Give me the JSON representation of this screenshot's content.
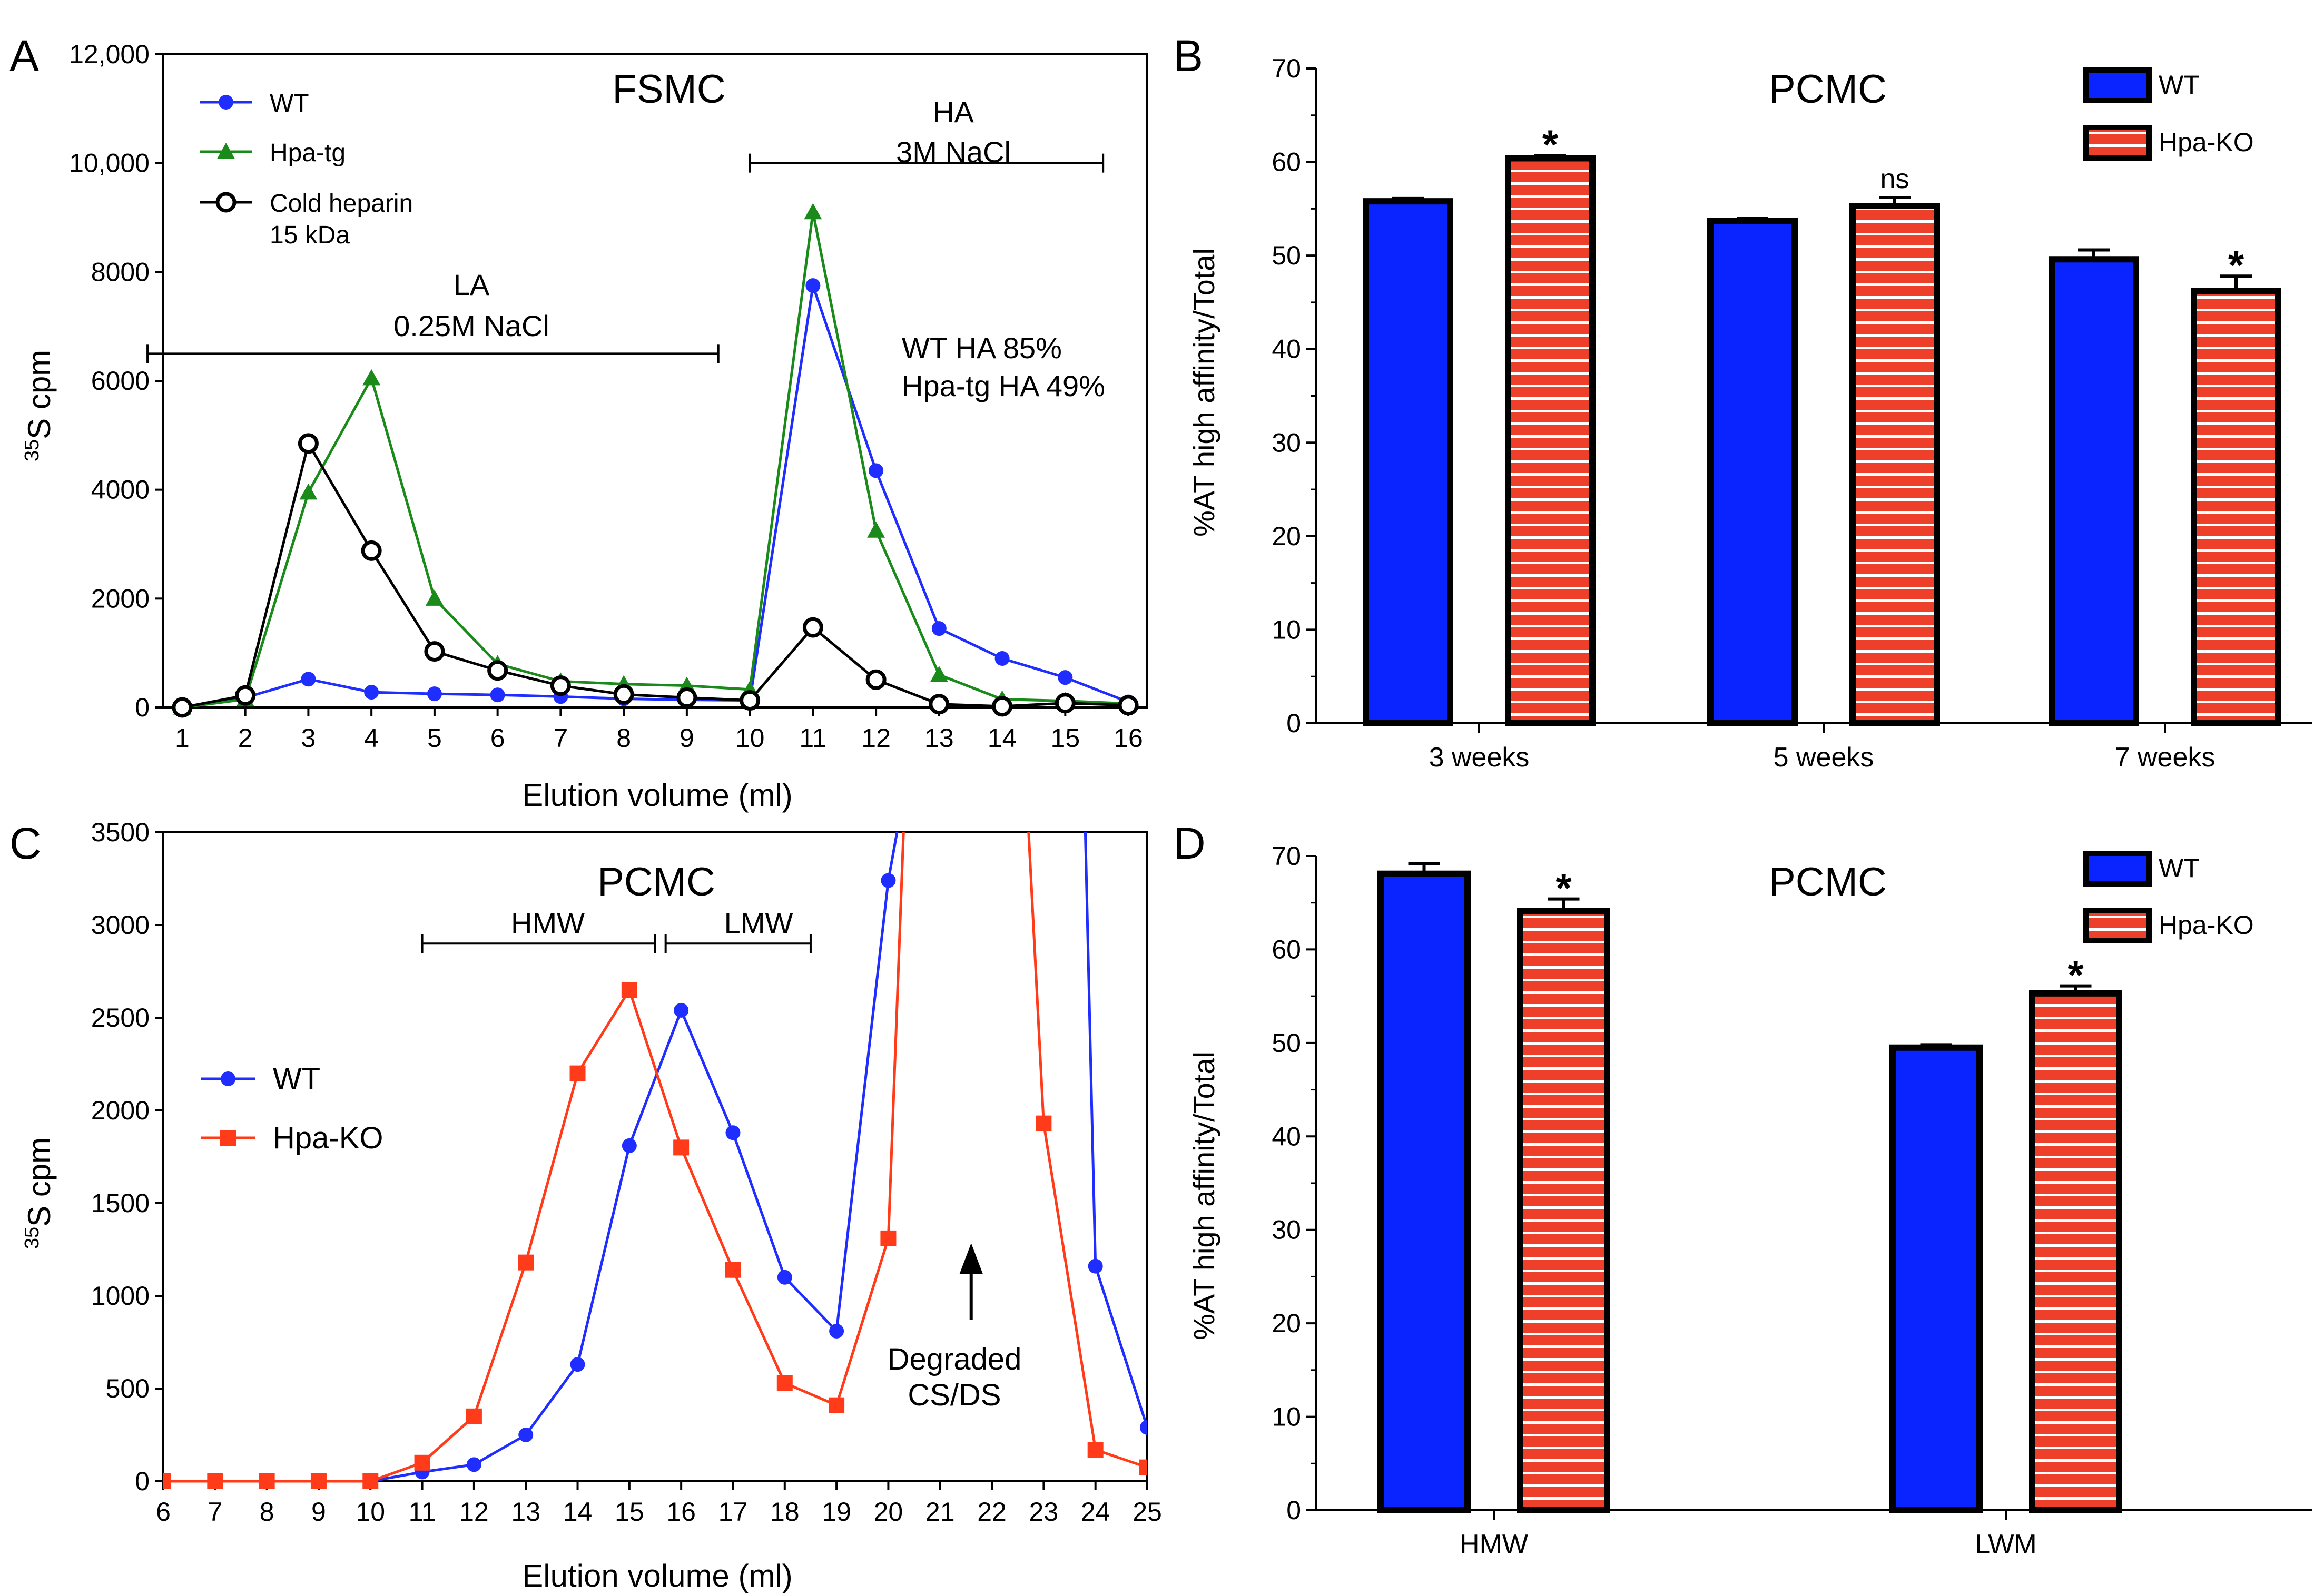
{
  "colors": {
    "wt_line": "#1f2eff",
    "hpa_tg": "#1a8a1a",
    "cold": "#000000",
    "hpa_ko": "#ff3b1a",
    "bar_blue": "#0a24ff",
    "bar_red": "#ee3f2a",
    "stripe": "#ffffff"
  },
  "chart_data": [
    {
      "panel": "A",
      "type": "line",
      "title": "FSMC",
      "xlabel": "Elution volume (ml)",
      "ylabel_sup": "35",
      "ylabel_main": "S cpm",
      "xlim": [
        0.7,
        16.3
      ],
      "ylim": [
        0,
        12000
      ],
      "x_ticks": [
        "1",
        "2",
        "3",
        "4",
        "5",
        "6",
        "7",
        "8",
        "9",
        "10",
        "11",
        "12",
        "13",
        "14",
        "15",
        "16"
      ],
      "y_ticks": [
        {
          "value": 0,
          "label": "0"
        },
        {
          "value": 2000,
          "label": "2000"
        },
        {
          "value": 4000,
          "label": "4000"
        },
        {
          "value": 6000,
          "label": "6000"
        },
        {
          "value": 8000,
          "label": "8000"
        },
        {
          "value": 10000,
          "label": "10,000"
        },
        {
          "value": 12000,
          "label": "12,000"
        }
      ],
      "series": [
        {
          "name": "WT",
          "marker": "circle-filled",
          "color_key": "wt_line",
          "x": [
            1,
            2,
            3,
            4,
            5,
            6,
            7,
            8,
            9,
            10,
            11,
            12,
            13,
            14,
            15,
            16
          ],
          "values": [
            0,
            180,
            520,
            280,
            250,
            230,
            200,
            160,
            140,
            130,
            7750,
            4350,
            1450,
            900,
            550,
            100
          ]
        },
        {
          "name": "Hpa-tg",
          "marker": "triangle",
          "color_key": "hpa_tg",
          "x": [
            1,
            2,
            3,
            4,
            5,
            6,
            7,
            8,
            9,
            10,
            11,
            12,
            13,
            14,
            15,
            16
          ],
          "values": [
            0,
            150,
            3950,
            6050,
            2000,
            800,
            480,
            430,
            400,
            330,
            9100,
            3250,
            600,
            150,
            120,
            70
          ]
        },
        {
          "name": "Cold heparin 15 kDa",
          "legend_lines": [
            "Cold heparin",
            "15 kDa"
          ],
          "marker": "circle-open",
          "color_key": "cold",
          "x": [
            1,
            2,
            3,
            4,
            5,
            6,
            7,
            8,
            9,
            10,
            11,
            12,
            13,
            14,
            15,
            16
          ],
          "values": [
            0,
            220,
            4850,
            2880,
            1030,
            680,
            400,
            240,
            180,
            130,
            1470,
            510,
            60,
            20,
            80,
            40
          ]
        }
      ],
      "brackets": [
        {
          "label_lines": [
            "LA",
            "0.25M NaCl"
          ],
          "x_from": 0.45,
          "x_to": 9.5,
          "y": 6500
        },
        {
          "label_lines": [
            "HA",
            "3M NaCl"
          ],
          "x_from": 10.0,
          "x_to": 15.6,
          "y": 10000
        }
      ],
      "annotations": [
        "WT HA 85%",
        "Hpa-tg HA 49%"
      ]
    },
    {
      "panel": "B",
      "type": "bar",
      "title": "PCMC",
      "xlabel": "",
      "ylabel": "%AT high affinity/Total",
      "ylim": [
        0,
        70
      ],
      "y_ticks": [
        "0",
        "10",
        "20",
        "30",
        "40",
        "50",
        "60",
        "70"
      ],
      "categories": [
        "3 weeks",
        "5 weeks",
        "7 weeks"
      ],
      "series": [
        {
          "name": "WT",
          "style": "solid",
          "values": [
            55.8,
            53.7,
            49.6
          ],
          "errors": [
            0.3,
            0.3,
            1.0
          ],
          "marks": [
            "",
            "",
            ""
          ]
        },
        {
          "name": "Hpa-KO",
          "style": "striped",
          "values": [
            60.4,
            55.3,
            46.2
          ],
          "errors": [
            0.3,
            0.9,
            1.6
          ],
          "marks": [
            "*",
            "ns",
            "*"
          ]
        }
      ]
    },
    {
      "panel": "C",
      "type": "line",
      "title": "PCMC",
      "xlabel": "Elution volume (ml)",
      "ylabel_sup": "35",
      "ylabel_main": "S cpm",
      "xlim": [
        6,
        25
      ],
      "ylim": [
        0,
        3500
      ],
      "x_ticks": [
        "6",
        "7",
        "8",
        "9",
        "10",
        "11",
        "12",
        "13",
        "14",
        "15",
        "16",
        "17",
        "18",
        "19",
        "20",
        "21",
        "22",
        "23",
        "24",
        "25"
      ],
      "y_ticks": [
        {
          "value": 0,
          "label": "0"
        },
        {
          "value": 500,
          "label": "500"
        },
        {
          "value": 1000,
          "label": "1000"
        },
        {
          "value": 1500,
          "label": "1500"
        },
        {
          "value": 2000,
          "label": "2000"
        },
        {
          "value": 2500,
          "label": "2500"
        },
        {
          "value": 3000,
          "label": "3000"
        },
        {
          "value": 3500,
          "label": "3500"
        }
      ],
      "series": [
        {
          "name": "WT",
          "marker": "circle-filled",
          "color_key": "wt_line",
          "x": [
            6,
            7,
            8,
            9,
            10,
            11,
            12,
            13,
            14,
            15,
            16,
            17,
            18,
            19,
            20,
            20.2,
            23.8,
            24,
            25
          ],
          "values": [
            0,
            0,
            0,
            0,
            0,
            50,
            90,
            250,
            630,
            1810,
            2540,
            1880,
            1100,
            810,
            3240,
            3550,
            3550,
            1160,
            290
          ],
          "marker_indices": [
            0,
            1,
            2,
            3,
            4,
            5,
            6,
            7,
            8,
            9,
            10,
            11,
            12,
            13,
            14,
            17,
            18
          ]
        },
        {
          "name": "Hpa-KO",
          "marker": "square",
          "color_key": "hpa_ko",
          "x": [
            6,
            7,
            8,
            9,
            10,
            11,
            12,
            13,
            14,
            15,
            16,
            17,
            18,
            19,
            20,
            20.3,
            22.7,
            23,
            24,
            25
          ],
          "values": [
            0,
            0,
            0,
            0,
            0,
            100,
            350,
            1180,
            2200,
            2650,
            1800,
            1140,
            530,
            410,
            1310,
            3550,
            3550,
            1930,
            170,
            75
          ],
          "marker_indices": [
            0,
            1,
            2,
            3,
            4,
            5,
            6,
            7,
            8,
            9,
            10,
            11,
            12,
            13,
            14,
            17,
            18,
            19
          ]
        }
      ],
      "brackets": [
        {
          "label": "HMW",
          "x_from": 11.0,
          "x_to": 15.5,
          "y": 2900
        },
        {
          "label": "LMW",
          "x_from": 15.7,
          "x_to": 18.5,
          "y": 2900
        }
      ],
      "annotation_lines": [
        "Degraded",
        "CS/DS"
      ],
      "arrow_x": 21.6
    },
    {
      "panel": "D",
      "type": "bar",
      "title": "PCMC",
      "xlabel": "",
      "ylabel": "%AT high affinity/Total",
      "ylim": [
        0,
        70
      ],
      "y_ticks": [
        "0",
        "10",
        "20",
        "30",
        "40",
        "50",
        "60",
        "70"
      ],
      "categories": [
        "HMW",
        "LWM"
      ],
      "series": [
        {
          "name": "WT",
          "style": "solid",
          "values": [
            68.1,
            49.5
          ],
          "errors": [
            1.1,
            0.3
          ],
          "marks": [
            "",
            ""
          ]
        },
        {
          "name": "Hpa-KO",
          "style": "striped",
          "values": [
            64.1,
            55.3
          ],
          "errors": [
            1.3,
            0.8
          ],
          "marks": [
            "*",
            "*"
          ]
        }
      ]
    }
  ]
}
